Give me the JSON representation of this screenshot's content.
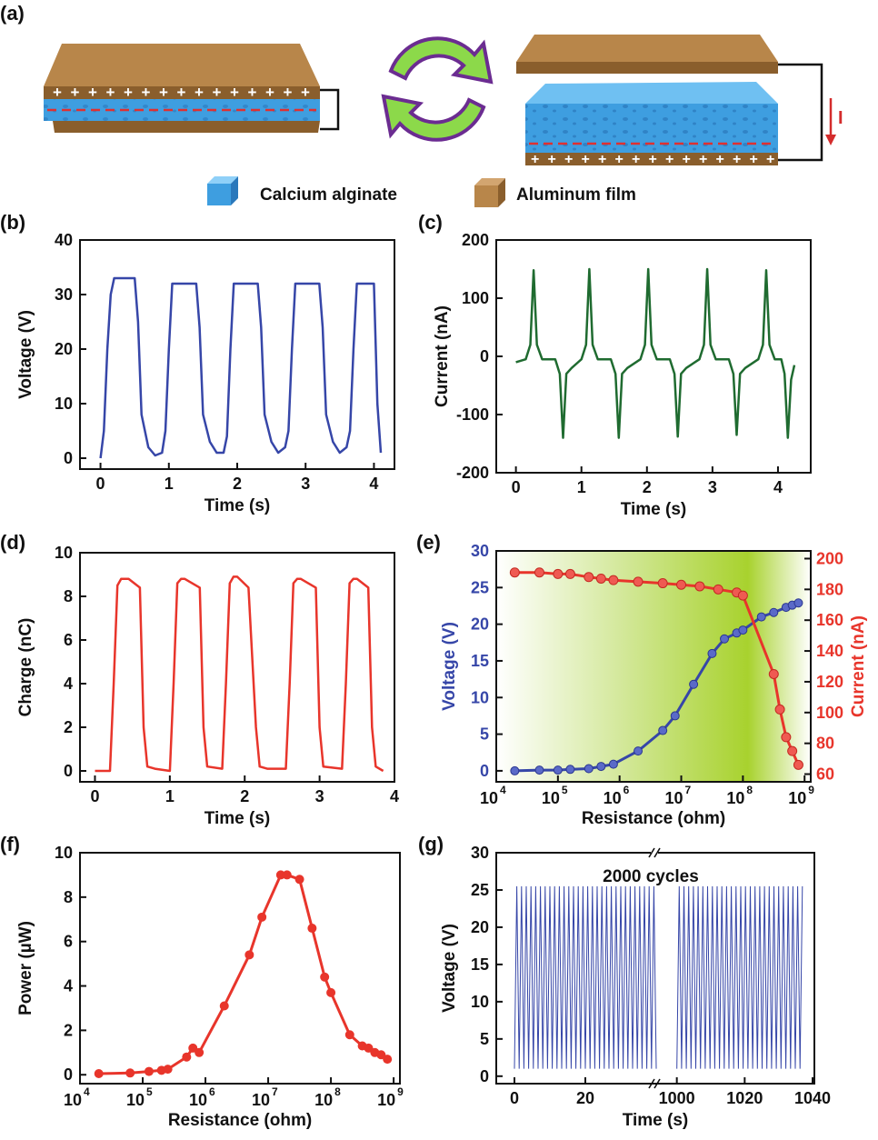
{
  "panel_labels": [
    "(a)",
    "(b)",
    "(c)",
    "(d)",
    "(e)",
    "(f)",
    "(g)"
  ],
  "schematic": {
    "legend": [
      {
        "icon": "calcium-alginate-cube-icon",
        "label": "Calcium alginate"
      },
      {
        "icon": "aluminum-film-cube-icon",
        "label": "Aluminum film"
      }
    ],
    "current_label": "I",
    "colors": {
      "aluminum": "#b8864a",
      "alginate": "#3e9ee0",
      "arrow_fill": "#8cd94a",
      "arrow_edge": "#6b2c91",
      "charge_line": "#e03030"
    }
  },
  "chart_data": [
    {
      "id": "b",
      "type": "line",
      "xlabel": "Time (s)",
      "ylabel": "Voltage (V)",
      "xlim": [
        -0.3,
        4.3
      ],
      "ylim": [
        -2,
        40
      ],
      "xticks": [
        0,
        1,
        2,
        3,
        4
      ],
      "yticks": [
        0,
        10,
        20,
        30,
        40
      ],
      "color": "#3646a8",
      "series": [
        {
          "x": [
            0,
            0.05,
            0.1,
            0.15,
            0.2,
            0.5,
            0.55,
            0.6,
            0.7,
            0.8,
            0.9,
            0.95,
            1.0,
            1.05,
            1.4,
            1.45,
            1.5,
            1.6,
            1.7,
            1.8,
            1.85,
            1.9,
            1.95,
            2.3,
            2.35,
            2.4,
            2.5,
            2.6,
            2.7,
            2.75,
            2.8,
            2.85,
            3.2,
            3.25,
            3.3,
            3.4,
            3.5,
            3.6,
            3.65,
            3.7,
            3.75,
            4.0,
            4.05,
            4.1
          ],
          "y": [
            0,
            5,
            20,
            30,
            33,
            33,
            25,
            8,
            2,
            0.5,
            1,
            5,
            20,
            32,
            32,
            24,
            8,
            3,
            1,
            1,
            4,
            20,
            32,
            32,
            24,
            8,
            3,
            1,
            2,
            5,
            20,
            32,
            32,
            24,
            8,
            3,
            1,
            2,
            5,
            20,
            32,
            32,
            10,
            1
          ]
        }
      ]
    },
    {
      "id": "c",
      "type": "line",
      "xlabel": "Time (s)",
      "ylabel": "Current (nA)",
      "xlim": [
        -0.3,
        4.5
      ],
      "ylim": [
        -200,
        200
      ],
      "xticks": [
        0,
        1,
        2,
        3,
        4
      ],
      "yticks": [
        -200,
        -100,
        0,
        100,
        200
      ],
      "color": "#1f6b30",
      "series": [
        {
          "x": [
            0,
            0.15,
            0.22,
            0.27,
            0.32,
            0.4,
            0.6,
            0.67,
            0.72,
            0.77,
            0.85,
            1.0,
            1.07,
            1.12,
            1.17,
            1.25,
            1.45,
            1.52,
            1.57,
            1.62,
            1.7,
            1.9,
            1.97,
            2.02,
            2.07,
            2.15,
            2.35,
            2.42,
            2.47,
            2.52,
            2.6,
            2.8,
            2.87,
            2.92,
            2.97,
            3.05,
            3.25,
            3.32,
            3.37,
            3.42,
            3.5,
            3.7,
            3.77,
            3.82,
            3.87,
            3.95,
            4.05,
            4.1,
            4.15,
            4.2,
            4.25
          ],
          "y": [
            -10,
            -5,
            20,
            148,
            20,
            -5,
            -5,
            -30,
            -140,
            -30,
            -20,
            -5,
            20,
            150,
            20,
            -5,
            -5,
            -30,
            -140,
            -30,
            -20,
            -5,
            20,
            150,
            20,
            -5,
            -5,
            -30,
            -138,
            -30,
            -20,
            -5,
            20,
            150,
            20,
            -5,
            -5,
            -30,
            -135,
            -30,
            -20,
            -5,
            20,
            148,
            20,
            -5,
            -5,
            -30,
            -140,
            -40,
            -15
          ]
        }
      ]
    },
    {
      "id": "d",
      "type": "line",
      "xlabel": "Time (s)",
      "ylabel": "Charge (nC)",
      "xlim": [
        -0.2,
        4.0
      ],
      "ylim": [
        -0.5,
        10
      ],
      "xticks": [
        0,
        1,
        2,
        3,
        4
      ],
      "yticks": [
        0,
        2,
        4,
        6,
        8,
        10
      ],
      "color": "#e8352b",
      "series": [
        {
          "x": [
            0,
            0.2,
            0.25,
            0.3,
            0.35,
            0.45,
            0.6,
            0.65,
            0.7,
            0.8,
            1.0,
            1.05,
            1.1,
            1.15,
            1.2,
            1.4,
            1.45,
            1.5,
            1.7,
            1.75,
            1.8,
            1.85,
            1.9,
            2.05,
            2.15,
            2.2,
            2.3,
            2.55,
            2.6,
            2.65,
            2.7,
            2.75,
            2.95,
            3.0,
            3.05,
            3.3,
            3.35,
            3.4,
            3.45,
            3.5,
            3.65,
            3.7,
            3.75,
            3.85
          ],
          "y": [
            0,
            0,
            4,
            8.5,
            8.8,
            8.8,
            8.4,
            2,
            0.2,
            0.1,
            0,
            4,
            8.6,
            8.8,
            8.8,
            8.4,
            2,
            0.2,
            0.1,
            4,
            8.6,
            8.9,
            8.9,
            8.4,
            2,
            0.2,
            0.1,
            0.1,
            4,
            8.6,
            8.8,
            8.8,
            8.4,
            2,
            0.2,
            0.1,
            4,
            8.6,
            8.8,
            8.8,
            8.4,
            2,
            0.2,
            0
          ]
        }
      ]
    },
    {
      "id": "e",
      "type": "scatter",
      "xlabel": "Resistance (ohm)",
      "ylabel": "Voltage (V)",
      "y2label": "Current (nA)",
      "xscale": "log",
      "xlim": [
        4,
        9.1
      ],
      "xticks": [
        4,
        5,
        6,
        7,
        8,
        9
      ],
      "xtick_labels": [
        "10",
        "10",
        "10",
        "10",
        "10",
        "10"
      ],
      "xtick_exps": [
        "4",
        "5",
        "6",
        "7",
        "8",
        "9"
      ],
      "ylim": [
        -1.5,
        30
      ],
      "yticks": [
        0,
        5,
        10,
        15,
        20,
        25,
        30
      ],
      "y2lim": [
        55,
        205
      ],
      "y2ticks": [
        60,
        80,
        100,
        120,
        140,
        160,
        180,
        200
      ],
      "ycolor": "#3646a8",
      "y2color": "#e8352b",
      "background": "green gradient",
      "voltage_log10_x": [
        4.3,
        4.7,
        5.0,
        5.2,
        5.5,
        5.7,
        5.9,
        6.3,
        6.7,
        6.9,
        7.2,
        7.5,
        7.7,
        7.9,
        8.0,
        8.3,
        8.5,
        8.7,
        8.8,
        8.9
      ],
      "voltage_y": [
        0,
        0.1,
        0.1,
        0.2,
        0.3,
        0.6,
        0.9,
        2.7,
        5.5,
        7.5,
        11.8,
        16.0,
        18.0,
        18.8,
        19.2,
        21.0,
        21.6,
        22.3,
        22.6,
        22.9
      ],
      "current_log10_x": [
        4.3,
        4.7,
        5.0,
        5.2,
        5.5,
        5.7,
        5.9,
        6.3,
        6.7,
        7.0,
        7.3,
        7.6,
        7.9,
        8.0,
        8.5,
        8.6,
        8.7,
        8.8,
        8.9
      ],
      "current_y": [
        191,
        191,
        190,
        190,
        188,
        187,
        186,
        185,
        184,
        183,
        182,
        180,
        178,
        176,
        125,
        102,
        84,
        75,
        66
      ]
    },
    {
      "id": "f",
      "type": "scatter",
      "xlabel": "Resistance (ohm)",
      "ylabel": "Power (µW)",
      "xscale": "log",
      "xlim": [
        4,
        9.1
      ],
      "xticks": [
        4,
        5,
        6,
        7,
        8,
        9
      ],
      "xtick_labels": [
        "10",
        "10",
        "10",
        "10",
        "10",
        "10"
      ],
      "xtick_exps": [
        "4",
        "5",
        "6",
        "7",
        "8",
        "9"
      ],
      "ylim": [
        -0.4,
        10
      ],
      "yticks": [
        0,
        2,
        4,
        6,
        8,
        10
      ],
      "color": "#e8352b",
      "log10_x": [
        4.3,
        4.8,
        5.1,
        5.3,
        5.4,
        5.7,
        5.8,
        5.9,
        6.3,
        6.7,
        6.9,
        7.2,
        7.3,
        7.5,
        7.7,
        7.9,
        8.0,
        8.3,
        8.5,
        8.6,
        8.7,
        8.8,
        8.9
      ],
      "y": [
        0.05,
        0.08,
        0.15,
        0.2,
        0.25,
        0.8,
        1.2,
        1.0,
        3.1,
        5.4,
        7.1,
        9.0,
        9.0,
        8.8,
        6.6,
        4.4,
        3.7,
        1.8,
        1.3,
        1.2,
        1.0,
        0.9,
        0.7
      ]
    },
    {
      "id": "g",
      "type": "line",
      "xlabel": "Time (s)",
      "ylabel": "Voltage (V)",
      "annotation": "2000 cycles",
      "xticks": [
        0,
        20,
        1000,
        1020,
        1040
      ],
      "yticks": [
        0,
        5,
        10,
        15,
        20,
        25,
        30
      ],
      "ylim": [
        -1,
        30
      ],
      "color": "#3646a8",
      "segments": [
        {
          "from": 0,
          "to": 40,
          "peak": 25.5,
          "base": 1
        },
        {
          "from": 1000,
          "to": 1037,
          "peak": 25.5,
          "base": 1
        }
      ]
    }
  ]
}
